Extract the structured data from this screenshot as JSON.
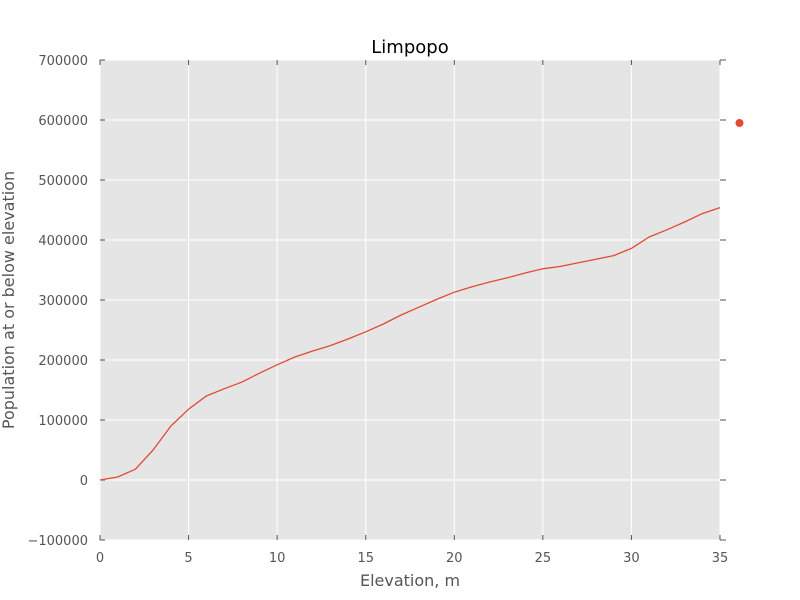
{
  "chart_data": {
    "type": "line",
    "title": "Limpopo",
    "xlabel": "Elevation, m",
    "ylabel": "Population at or below elevation",
    "xlim": [
      0,
      35
    ],
    "ylim": [
      -100000,
      700000
    ],
    "xticks": [
      0,
      5,
      10,
      15,
      20,
      25,
      30,
      35
    ],
    "yticks": [
      -100000,
      0,
      100000,
      200000,
      300000,
      400000,
      500000,
      600000,
      700000
    ],
    "xtick_labels": [
      "0",
      "5",
      "10",
      "15",
      "20",
      "25",
      "30",
      "35"
    ],
    "ytick_labels": [
      "−100000",
      "0",
      "100000",
      "200000",
      "300000",
      "400000",
      "500000",
      "600000",
      "700000"
    ],
    "grid": true,
    "background": "#e5e5e5",
    "series": [
      {
        "color": "#e24a33",
        "x": [
          0,
          1,
          2,
          3,
          4,
          5,
          6,
          7,
          8,
          9,
          10,
          11,
          12,
          13,
          14,
          15,
          16,
          17,
          18,
          19,
          20,
          21,
          22,
          23,
          24,
          25,
          26,
          27,
          28,
          29,
          30,
          31,
          32,
          33,
          34,
          35
        ],
        "y": [
          0,
          5000,
          18000,
          50000,
          90000,
          118000,
          140000,
          152000,
          163000,
          178000,
          192000,
          205000,
          215000,
          224000,
          235000,
          247000,
          260000,
          275000,
          288000,
          301000,
          313000,
          322000,
          330000,
          337000,
          345000,
          352000,
          356000,
          362000,
          368000,
          374000,
          386000,
          405000,
          417000,
          430000,
          444000,
          454000
        ]
      }
    ],
    "annotations": [
      {
        "type": "point",
        "x": 36.1,
        "y": 595000,
        "color": "#e24a33"
      }
    ]
  }
}
